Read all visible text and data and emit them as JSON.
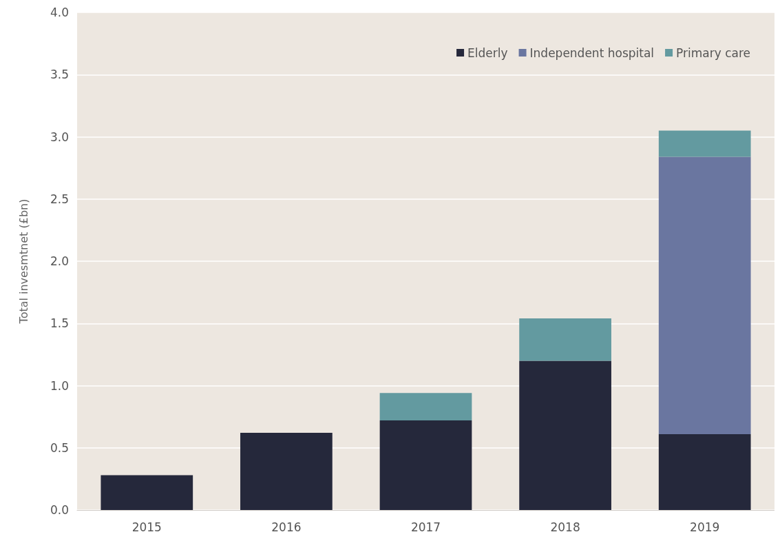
{
  "chart_data": {
    "type": "bar",
    "stacked": true,
    "ylabel": "Total invesmtnet (£bn)",
    "categories": [
      "2015",
      "2016",
      "2017",
      "2018",
      "2019"
    ],
    "series": [
      {
        "name": "Elderly",
        "color": "#25283b",
        "values": [
          0.28,
          0.62,
          0.72,
          1.2,
          0.61
        ]
      },
      {
        "name": "Independent hospital",
        "color": "#6a76a0",
        "values": [
          null,
          null,
          null,
          null,
          2.23
        ]
      },
      {
        "name": "Primary care",
        "color": "#639aa0",
        "values": [
          null,
          null,
          0.22,
          0.34,
          0.21
        ]
      }
    ],
    "ylim": [
      0,
      4
    ],
    "yticks": [
      {
        "value": 0,
        "label": "0.0"
      },
      {
        "value": 0.5,
        "label": "0.5"
      },
      {
        "value": 1,
        "label": "1.0"
      },
      {
        "value": 1.5,
        "label": "1.5"
      },
      {
        "value": 2,
        "label": "2.0"
      },
      {
        "value": 2.5,
        "label": "2.5"
      },
      {
        "value": 3,
        "label": "3.0"
      },
      {
        "value": 3.5,
        "label": "3.5"
      },
      {
        "value": 4,
        "label": "4.0"
      }
    ],
    "grid": "y",
    "legend": "top right"
  }
}
